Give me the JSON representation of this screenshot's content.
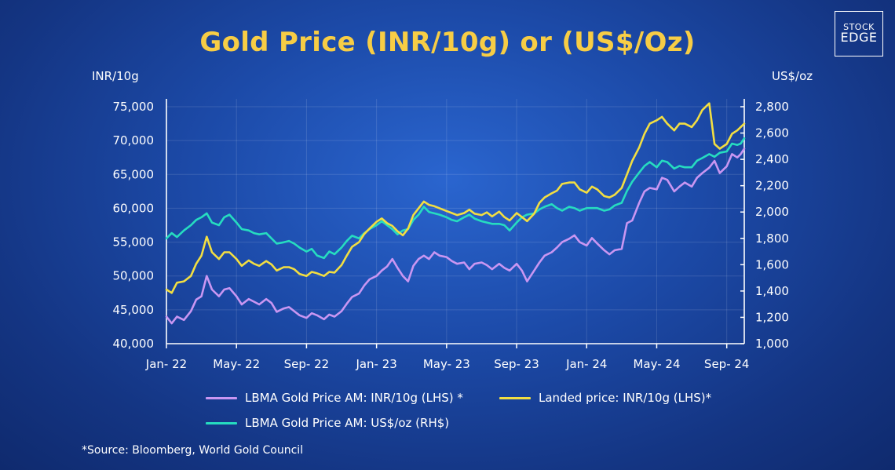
{
  "chart_data": {
    "type": "line",
    "title": "Gold Price (INR/10g) or (US$/Oz)",
    "y_left_label": "INR/10g",
    "y_right_label": "US$/oz",
    "y_left_lim": [
      40000,
      75000
    ],
    "y_right_lim": [
      1000,
      2800
    ],
    "y_left_ticks": [
      "40,000",
      "45,000",
      "50,000",
      "55,000",
      "60,000",
      "65,000",
      "70,000",
      "75,000"
    ],
    "y_right_ticks": [
      "1,000",
      "1,200",
      "1,400",
      "1,600",
      "1,800",
      "2,000",
      "2,200",
      "2,400",
      "2,600",
      "2,800"
    ],
    "x_tick_labels": [
      "Jan- 22",
      "May- 22",
      "Sep- 22",
      "Jan- 23",
      "May- 23",
      "Sep- 23",
      "Jan- 24",
      "May- 24",
      "Sep- 24"
    ],
    "x_unit": "months since Jan-22 (axis runs Jan-22 to Sep-24)",
    "grid": true,
    "legend_position": "bottom",
    "series": [
      {
        "name": "LBMA Gold Price AM: INR/10g (LHS) *",
        "axis": "left",
        "color": "#c996f2",
        "points": [
          [
            0,
            44000
          ],
          [
            0.3,
            43000
          ],
          [
            0.6,
            44000
          ],
          [
            1,
            43500
          ],
          [
            1.4,
            44800
          ],
          [
            1.7,
            46500
          ],
          [
            2,
            47000
          ],
          [
            2.3,
            50000
          ],
          [
            2.6,
            48000
          ],
          [
            3,
            47000
          ],
          [
            3.3,
            48000
          ],
          [
            3.6,
            48200
          ],
          [
            4,
            47000
          ],
          [
            4.3,
            45800
          ],
          [
            4.7,
            46600
          ],
          [
            5,
            46200
          ],
          [
            5.3,
            45800
          ],
          [
            5.7,
            46600
          ],
          [
            6,
            46000
          ],
          [
            6.3,
            44700
          ],
          [
            6.7,
            45200
          ],
          [
            7,
            45400
          ],
          [
            7.3,
            44800
          ],
          [
            7.6,
            44200
          ],
          [
            8,
            43800
          ],
          [
            8.3,
            44500
          ],
          [
            8.6,
            44200
          ],
          [
            9,
            43600
          ],
          [
            9.3,
            44300
          ],
          [
            9.6,
            44000
          ],
          [
            10,
            44800
          ],
          [
            10.3,
            45900
          ],
          [
            10.6,
            46900
          ],
          [
            11,
            47400
          ],
          [
            11.3,
            48600
          ],
          [
            11.6,
            49500
          ],
          [
            12,
            50000
          ],
          [
            12.3,
            50800
          ],
          [
            12.6,
            51400
          ],
          [
            12.9,
            52500
          ],
          [
            13.2,
            51200
          ],
          [
            13.5,
            50000
          ],
          [
            13.8,
            49200
          ],
          [
            14.1,
            51500
          ],
          [
            14.4,
            52500
          ],
          [
            14.7,
            53000
          ],
          [
            15,
            52500
          ],
          [
            15.3,
            53500
          ],
          [
            15.6,
            53000
          ],
          [
            16,
            52800
          ],
          [
            16.3,
            52200
          ],
          [
            16.6,
            51800
          ],
          [
            17,
            52000
          ],
          [
            17.3,
            51000
          ],
          [
            17.6,
            51800
          ],
          [
            18,
            52000
          ],
          [
            18.3,
            51600
          ],
          [
            18.6,
            51000
          ],
          [
            19,
            51800
          ],
          [
            19.3,
            51200
          ],
          [
            19.6,
            50800
          ],
          [
            20,
            51800
          ],
          [
            20.3,
            50800
          ],
          [
            20.6,
            49200
          ],
          [
            21,
            50800
          ],
          [
            21.3,
            52000
          ],
          [
            21.6,
            53000
          ],
          [
            22,
            53500
          ],
          [
            22.3,
            54200
          ],
          [
            22.6,
            55000
          ],
          [
            23,
            55500
          ],
          [
            23.3,
            56000
          ],
          [
            23.6,
            55000
          ],
          [
            24,
            54500
          ],
          [
            24.3,
            55600
          ],
          [
            24.6,
            54800
          ],
          [
            25,
            53800
          ],
          [
            25.3,
            53200
          ],
          [
            25.6,
            53800
          ],
          [
            26,
            54000
          ],
          [
            26.3,
            57800
          ],
          [
            26.6,
            58200
          ],
          [
            27,
            60800
          ],
          [
            27.3,
            62500
          ],
          [
            27.6,
            63000
          ],
          [
            28,
            62800
          ],
          [
            28.3,
            64500
          ],
          [
            28.6,
            64200
          ],
          [
            29,
            62500
          ],
          [
            29.3,
            63200
          ],
          [
            29.6,
            63800
          ],
          [
            30,
            63200
          ],
          [
            30.3,
            64500
          ],
          [
            30.6,
            65200
          ],
          [
            31,
            66000
          ],
          [
            31.3,
            67000
          ],
          [
            31.6,
            65200
          ],
          [
            32,
            66200
          ],
          [
            32.3,
            68000
          ],
          [
            32.6,
            67500
          ],
          [
            32.8,
            68000
          ],
          [
            33,
            68800
          ]
        ]
      },
      {
        "name": "Landed price: INR/10g (LHS)*",
        "axis": "left",
        "color": "#f2de42",
        "points": [
          [
            0,
            48000
          ],
          [
            0.3,
            47500
          ],
          [
            0.6,
            49000
          ],
          [
            1,
            49200
          ],
          [
            1.4,
            50000
          ],
          [
            1.7,
            51800
          ],
          [
            2,
            53000
          ],
          [
            2.3,
            55800
          ],
          [
            2.6,
            53500
          ],
          [
            3,
            52500
          ],
          [
            3.3,
            53500
          ],
          [
            3.6,
            53500
          ],
          [
            4,
            52500
          ],
          [
            4.3,
            51500
          ],
          [
            4.7,
            52300
          ],
          [
            5,
            51800
          ],
          [
            5.3,
            51500
          ],
          [
            5.7,
            52200
          ],
          [
            6,
            51700
          ],
          [
            6.3,
            50800
          ],
          [
            6.7,
            51300
          ],
          [
            7,
            51300
          ],
          [
            7.3,
            51000
          ],
          [
            7.6,
            50300
          ],
          [
            8,
            50000
          ],
          [
            8.3,
            50600
          ],
          [
            8.6,
            50400
          ],
          [
            9,
            50000
          ],
          [
            9.3,
            50600
          ],
          [
            9.6,
            50500
          ],
          [
            10,
            51600
          ],
          [
            10.3,
            53000
          ],
          [
            10.6,
            54300
          ],
          [
            11,
            55000
          ],
          [
            11.3,
            56200
          ],
          [
            11.6,
            57000
          ],
          [
            12,
            58000
          ],
          [
            12.3,
            58500
          ],
          [
            12.6,
            57800
          ],
          [
            12.9,
            57400
          ],
          [
            13.2,
            56600
          ],
          [
            13.5,
            56000
          ],
          [
            13.8,
            57000
          ],
          [
            14.1,
            59000
          ],
          [
            14.4,
            60000
          ],
          [
            14.7,
            61000
          ],
          [
            15,
            60500
          ],
          [
            15.3,
            60300
          ],
          [
            15.6,
            60000
          ],
          [
            16,
            59600
          ],
          [
            16.3,
            59300
          ],
          [
            16.6,
            59000
          ],
          [
            17,
            59300
          ],
          [
            17.3,
            59800
          ],
          [
            17.6,
            59200
          ],
          [
            18,
            59000
          ],
          [
            18.3,
            59400
          ],
          [
            18.6,
            58800
          ],
          [
            19,
            59500
          ],
          [
            19.3,
            58700
          ],
          [
            19.6,
            58200
          ],
          [
            20,
            59300
          ],
          [
            20.3,
            58700
          ],
          [
            20.6,
            58100
          ],
          [
            21,
            59200
          ],
          [
            21.3,
            60800
          ],
          [
            21.6,
            61600
          ],
          [
            22,
            62200
          ],
          [
            22.3,
            62600
          ],
          [
            22.6,
            63600
          ],
          [
            23,
            63800
          ],
          [
            23.3,
            63800
          ],
          [
            23.6,
            62800
          ],
          [
            24,
            62300
          ],
          [
            24.3,
            63200
          ],
          [
            24.6,
            62800
          ],
          [
            25,
            61800
          ],
          [
            25.3,
            61600
          ],
          [
            25.6,
            62000
          ],
          [
            26,
            63000
          ],
          [
            26.3,
            65000
          ],
          [
            26.6,
            67000
          ],
          [
            27,
            69000
          ],
          [
            27.3,
            71000
          ],
          [
            27.6,
            72500
          ],
          [
            28,
            73000
          ],
          [
            28.3,
            73500
          ],
          [
            28.6,
            72500
          ],
          [
            29,
            71500
          ],
          [
            29.3,
            72500
          ],
          [
            29.6,
            72500
          ],
          [
            30,
            72000
          ],
          [
            30.3,
            73000
          ],
          [
            30.6,
            74500
          ],
          [
            31,
            75500
          ],
          [
            31.3,
            69500
          ],
          [
            31.6,
            68800
          ],
          [
            32,
            69500
          ],
          [
            32.3,
            71000
          ],
          [
            32.6,
            71500
          ],
          [
            32.8,
            72000
          ],
          [
            33,
            72500
          ]
        ]
      },
      {
        "name": "LBMA Gold Price AM: US$/oz (RH$)",
        "axis": "right",
        "color": "#26dcc0",
        "points": [
          [
            0,
            1800
          ],
          [
            0.3,
            1840
          ],
          [
            0.6,
            1810
          ],
          [
            1,
            1860
          ],
          [
            1.4,
            1900
          ],
          [
            1.7,
            1940
          ],
          [
            2,
            1960
          ],
          [
            2.3,
            1990
          ],
          [
            2.6,
            1920
          ],
          [
            3,
            1900
          ],
          [
            3.3,
            1960
          ],
          [
            3.6,
            1980
          ],
          [
            4,
            1920
          ],
          [
            4.3,
            1870
          ],
          [
            4.7,
            1860
          ],
          [
            5,
            1840
          ],
          [
            5.3,
            1830
          ],
          [
            5.7,
            1840
          ],
          [
            6,
            1800
          ],
          [
            6.3,
            1760
          ],
          [
            6.7,
            1770
          ],
          [
            7,
            1780
          ],
          [
            7.3,
            1760
          ],
          [
            7.6,
            1730
          ],
          [
            8,
            1700
          ],
          [
            8.3,
            1720
          ],
          [
            8.6,
            1670
          ],
          [
            9,
            1650
          ],
          [
            9.3,
            1700
          ],
          [
            9.6,
            1680
          ],
          [
            10,
            1730
          ],
          [
            10.3,
            1780
          ],
          [
            10.6,
            1820
          ],
          [
            11,
            1800
          ],
          [
            11.3,
            1840
          ],
          [
            11.6,
            1870
          ],
          [
            12,
            1900
          ],
          [
            12.3,
            1930
          ],
          [
            12.6,
            1900
          ],
          [
            12.9,
            1870
          ],
          [
            13.2,
            1830
          ],
          [
            13.5,
            1860
          ],
          [
            13.8,
            1870
          ],
          [
            14.1,
            1940
          ],
          [
            14.4,
            1980
          ],
          [
            14.7,
            2040
          ],
          [
            15,
            2000
          ],
          [
            15.3,
            1990
          ],
          [
            15.6,
            1980
          ],
          [
            16,
            1960
          ],
          [
            16.3,
            1940
          ],
          [
            16.6,
            1930
          ],
          [
            17,
            1960
          ],
          [
            17.3,
            1980
          ],
          [
            17.6,
            1950
          ],
          [
            18,
            1930
          ],
          [
            18.3,
            1920
          ],
          [
            18.6,
            1910
          ],
          [
            19,
            1910
          ],
          [
            19.3,
            1900
          ],
          [
            19.6,
            1860
          ],
          [
            20,
            1920
          ],
          [
            20.3,
            1960
          ],
          [
            20.6,
            1980
          ],
          [
            21,
            1990
          ],
          [
            21.3,
            2020
          ],
          [
            21.6,
            2040
          ],
          [
            22,
            2060
          ],
          [
            22.3,
            2030
          ],
          [
            22.6,
            2010
          ],
          [
            23,
            2040
          ],
          [
            23.3,
            2030
          ],
          [
            23.6,
            2010
          ],
          [
            24,
            2030
          ],
          [
            24.3,
            2030
          ],
          [
            24.6,
            2030
          ],
          [
            25,
            2010
          ],
          [
            25.3,
            2020
          ],
          [
            25.6,
            2050
          ],
          [
            26,
            2070
          ],
          [
            26.3,
            2160
          ],
          [
            26.6,
            2230
          ],
          [
            27,
            2300
          ],
          [
            27.3,
            2350
          ],
          [
            27.6,
            2380
          ],
          [
            28,
            2340
          ],
          [
            28.3,
            2390
          ],
          [
            28.6,
            2380
          ],
          [
            29,
            2330
          ],
          [
            29.3,
            2350
          ],
          [
            29.6,
            2340
          ],
          [
            30,
            2340
          ],
          [
            30.3,
            2390
          ],
          [
            30.6,
            2410
          ],
          [
            31,
            2440
          ],
          [
            31.3,
            2420
          ],
          [
            31.6,
            2450
          ],
          [
            32,
            2460
          ],
          [
            32.3,
            2520
          ],
          [
            32.6,
            2510
          ],
          [
            32.8,
            2520
          ],
          [
            33,
            2560
          ]
        ]
      }
    ]
  },
  "logo": {
    "line1": "STOCK",
    "line2": "EDGE"
  },
  "source": "*Source: Bloomberg, World Gold Council"
}
